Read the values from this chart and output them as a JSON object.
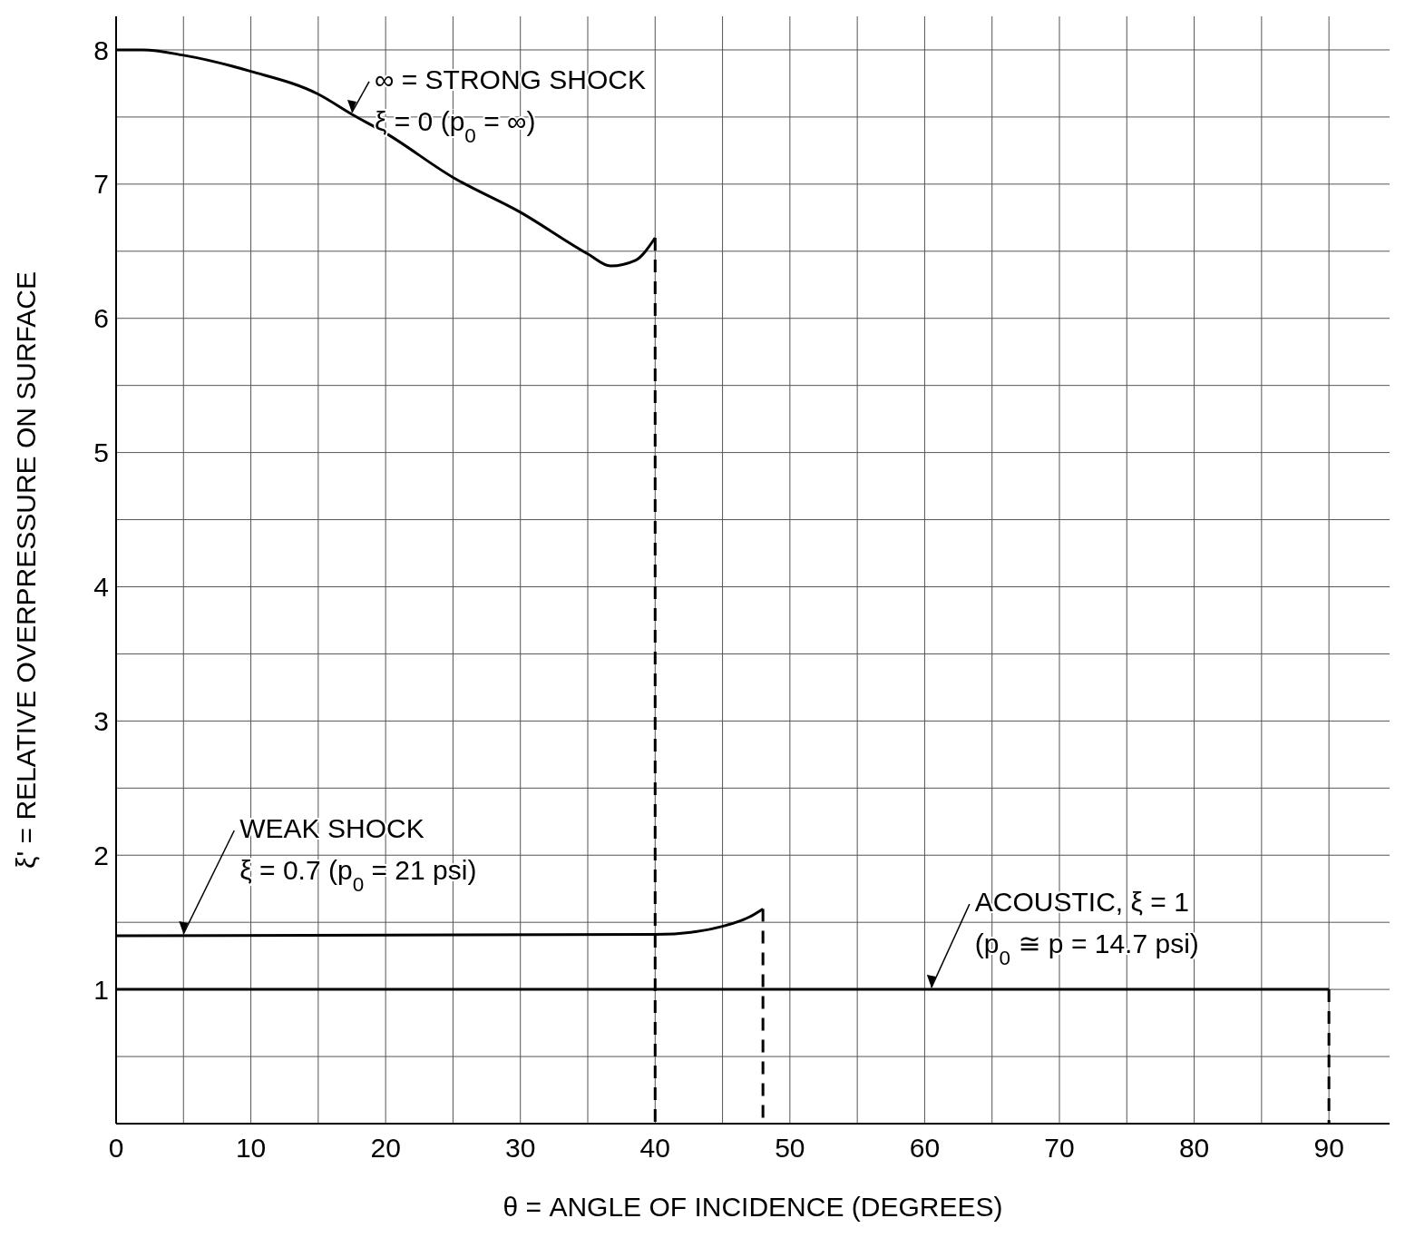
{
  "chart_data": {
    "type": "line",
    "xlabel": "θ = ANGLE OF INCIDENCE (DEGREES)",
    "ylabel": "ξ' = RELATIVE OVERPRESSURE ON SURFACE",
    "xlim": [
      0,
      94.5
    ],
    "ylim": [
      0,
      8.25
    ],
    "xticks": [
      0,
      {
        "value": 5,
        "label": null
      },
      10,
      {
        "value": 15,
        "label": null
      },
      20,
      {
        "value": 25,
        "label": null
      },
      30,
      {
        "value": 35,
        "label": null
      },
      40,
      {
        "value": 45,
        "label": null
      },
      50,
      {
        "value": 55,
        "label": null
      },
      60,
      {
        "value": 65,
        "label": null
      },
      70,
      {
        "value": 75,
        "label": null
      },
      80,
      {
        "value": 85,
        "label": null
      },
      90
    ],
    "yticks": [
      {
        "value": 0,
        "label": null
      },
      {
        "value": 0.5,
        "label": null
      },
      1,
      {
        "value": 1.5,
        "label": null
      },
      2,
      {
        "value": 2.5,
        "label": null
      },
      3,
      {
        "value": 3.5,
        "label": null
      },
      4,
      {
        "value": 4.5,
        "label": null
      },
      5,
      {
        "value": 5.5,
        "label": null
      },
      6,
      {
        "value": 6.5,
        "label": null
      },
      7,
      {
        "value": 7.5,
        "label": null
      },
      8
    ],
    "grid": true,
    "marker": "none",
    "series": [
      {
        "color": "#000000",
        "line_style": "solid",
        "x": [
          0,
          2,
          5,
          10,
          15,
          17.5,
          20,
          25,
          30,
          35,
          36.7,
          38.5,
          40
        ],
        "values": [
          8.0,
          8.0,
          7.96,
          7.84,
          7.67,
          7.52,
          7.38,
          7.05,
          6.79,
          6.48,
          6.39,
          6.43,
          6.6
        ]
      },
      {
        "color": "#000000",
        "line_style": "solid",
        "x": [
          0,
          40,
          43,
          45,
          47,
          48
        ],
        "values": [
          1.4,
          1.41,
          1.43,
          1.47,
          1.54,
          1.6
        ]
      },
      {
        "color": "#000000",
        "line_style": "solid",
        "x": [
          0,
          90
        ],
        "values": [
          1,
          1
        ]
      },
      {
        "color": "#000000",
        "line_style": "dashed",
        "x": [
          40,
          40
        ],
        "values": [
          6.6,
          0
        ]
      },
      {
        "color": "#000000",
        "line_style": "dashed",
        "x": [
          48,
          48
        ],
        "values": [
          1.6,
          0
        ]
      },
      {
        "color": "#000000",
        "line_style": "dashed",
        "x": [
          90,
          90
        ],
        "values": [
          1,
          0
        ]
      }
    ],
    "annotations": [
      {
        "text": "∞ = STRONG SHOCK\nξ = 0 (p$_{0}$ = ∞)",
        "x": 17.5,
        "y": 7.52
      },
      {
        "text": "WEAK SHOCK\nξ = 0.7 (p$_{0}$ = 21 psi)",
        "x": 5,
        "y": 1.4
      },
      {
        "text": "ACOUSTIC, ξ = 1\n(p$_{0}$ ≅ p = 14.7 psi)",
        "x": 60.5,
        "y": 1
      }
    ]
  }
}
